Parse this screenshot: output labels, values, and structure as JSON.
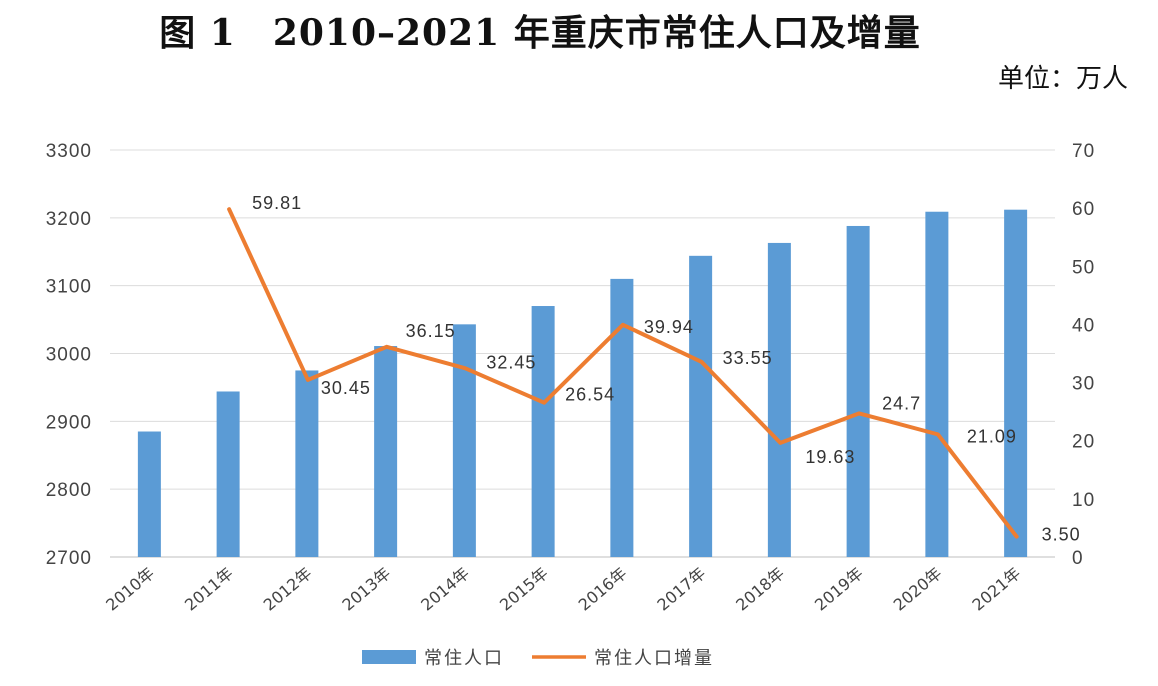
{
  "figure": {
    "title": "图 1　2010–2021 年重庆市常住人口及增量",
    "unit": "单位：万人"
  },
  "chart_data": {
    "type": "bar+line",
    "title": "图 1　2010–2021 年重庆市常住人口及增量",
    "unit": "单位：万人",
    "categories": [
      "2010年",
      "2011年",
      "2012年",
      "2013年",
      "2014年",
      "2015年",
      "2016年",
      "2017年",
      "2018年",
      "2019年",
      "2020年",
      "2021年"
    ],
    "series": [
      {
        "name": "常住人口",
        "kind": "bar",
        "axis": "left",
        "color": "#5b9bd5",
        "values": [
          2885,
          2944,
          2975,
          3011,
          3043,
          3070,
          3110,
          3144,
          3163,
          3188,
          3209,
          3212
        ]
      },
      {
        "name": "常住人口增量",
        "kind": "line",
        "axis": "right",
        "color": "#ed7d31",
        "values": [
          null,
          59.81,
          30.45,
          36.15,
          32.45,
          26.54,
          39.94,
          33.55,
          19.63,
          24.7,
          21.09,
          3.5
        ],
        "labels": [
          "",
          "59.81",
          "30.45",
          "36.15",
          "32.45",
          "26.54",
          "39.94",
          "33.55",
          "19.63",
          "24.7",
          "21.09",
          "3.50"
        ]
      }
    ],
    "y_left": {
      "min": 2700,
      "max": 3300,
      "step": 100,
      "ticks": [
        "2700",
        "2800",
        "2900",
        "3000",
        "3100",
        "3200",
        "3300"
      ]
    },
    "y_right": {
      "min": 0,
      "max": 70,
      "step": 10,
      "ticks": [
        "0",
        "10",
        "20",
        "30",
        "40",
        "50",
        "60",
        "70"
      ]
    },
    "grid": true,
    "legend_position": "bottom"
  }
}
